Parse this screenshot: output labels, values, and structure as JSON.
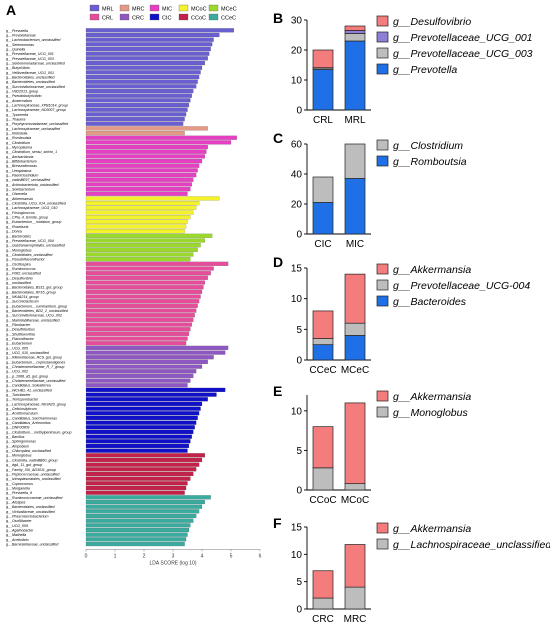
{
  "panel_labels": [
    "A",
    "B",
    "C",
    "D",
    "E",
    "F"
  ],
  "chart_data": [
    {
      "type": "bar",
      "orientation": "horizontal",
      "xlabel": "LDA SCORE (log 10)",
      "xlim": [
        0,
        6
      ],
      "xticks": [
        "0",
        "1",
        "2",
        "3",
        "4",
        "5",
        "6"
      ],
      "legend_position": "top",
      "legend": [
        {
          "name": "MRL",
          "color": "#6a5fd0"
        },
        {
          "name": "MRC",
          "color": "#e39a86"
        },
        {
          "name": "MIC",
          "color": "#e540c2"
        },
        {
          "name": "MCoC",
          "color": "#f4f22a"
        },
        {
          "name": "MCeC",
          "color": "#9ad92b"
        },
        {
          "name": "CRL",
          "color": "#e54d9a"
        },
        {
          "name": "CRC",
          "color": "#8e57c2"
        },
        {
          "name": "CIC",
          "color": "#1010c8"
        },
        {
          "name": "CCoC",
          "color": "#c2224a"
        },
        {
          "name": "CCeC",
          "color": "#3aab9e"
        }
      ],
      "bars": [
        {
          "g": 0,
          "label": "g__Prevotella",
          "value": 5.1
        },
        {
          "g": 0,
          "label": "g__Prevotellaceae",
          "value": 4.6
        },
        {
          "g": 0,
          "label": "g__Lachnobacterium_unclassified",
          "value": 4.4
        },
        {
          "g": 0,
          "label": "g__Selenomonas",
          "value": 4.35
        },
        {
          "g": 0,
          "label": "g__Quinella",
          "value": 4.3
        },
        {
          "g": 0,
          "label": "g__Prevotellaceae_UCG_001",
          "value": 4.25
        },
        {
          "g": 0,
          "label": "g__Prevotellaceae_UCG_003",
          "value": 4.2
        },
        {
          "g": 0,
          "label": "g__Selenomonadaceae_unclassified",
          "value": 4.1
        },
        {
          "g": 0,
          "label": "g__Butyrivibrio",
          "value": 4.0
        },
        {
          "g": 0,
          "label": "g__Veillonellaceae_UCG_001",
          "value": 3.95
        },
        {
          "g": 0,
          "label": "g__Bacteroidales_unclassified",
          "value": 3.9
        },
        {
          "g": 0,
          "label": "g__Bacteroidetes_unclassified",
          "value": 3.85
        },
        {
          "g": 0,
          "label": "g__Succinivibrionaceae_unclassified",
          "value": 3.8
        },
        {
          "g": 0,
          "label": "g__V9D2013_group",
          "value": 3.7
        },
        {
          "g": 0,
          "label": "g__Pseudobutyrivibrio",
          "value": 3.65
        },
        {
          "g": 0,
          "label": "g__Anaerovibrio",
          "value": 3.6
        },
        {
          "g": 0,
          "label": "g__Lachnospiraceae_XPB1014_group",
          "value": 3.55
        },
        {
          "g": 0,
          "label": "g__Lachnospiraceae_ND3007_group",
          "value": 3.5
        },
        {
          "g": 0,
          "label": "g__Tyzzerella",
          "value": 3.45
        },
        {
          "g": 0,
          "label": "g__Thauera",
          "value": 3.4
        },
        {
          "g": 0,
          "label": "g__Porphyromonadaceae_unclassified",
          "value": 3.35
        },
        {
          "g": 1,
          "label": "g__Lachnospiraceae_unclassified",
          "value": 4.2
        },
        {
          "g": 1,
          "label": "g__Klebsiella",
          "value": 3.4
        },
        {
          "g": 2,
          "label": "g__Romboutsia",
          "value": 5.2
        },
        {
          "g": 2,
          "label": "g__Clostridium",
          "value": 5.0
        },
        {
          "g": 2,
          "label": "g__Mycoplasma",
          "value": 4.2
        },
        {
          "g": 2,
          "label": "g__Clostridium_sensu_stricto_1",
          "value": 4.15
        },
        {
          "g": 2,
          "label": "g__Aerisacidovia",
          "value": 4.1
        },
        {
          "g": 2,
          "label": "g__Bifidobacterium",
          "value": 4.0
        },
        {
          "g": 2,
          "label": "g__Brevundimonas",
          "value": 3.9
        },
        {
          "g": 2,
          "label": "g__Ureaplasma",
          "value": 3.85
        },
        {
          "g": 2,
          "label": "g__Paeniclostridium",
          "value": 3.8
        },
        {
          "g": 2,
          "label": "g__vadinBE97_unclassified",
          "value": 3.7
        },
        {
          "g": 2,
          "label": "g__Actinobacteriota_unclassified",
          "value": 3.65
        },
        {
          "g": 2,
          "label": "g__Solobacterium",
          "value": 3.6
        },
        {
          "g": 2,
          "label": "g__Olsenella",
          "value": 3.5
        },
        {
          "g": 3,
          "label": "g__Akkermansia",
          "value": 4.6
        },
        {
          "g": 3,
          "label": "g__Clostridia_UCG_014_unclassified",
          "value": 3.9
        },
        {
          "g": 3,
          "label": "g__Lachnospiraceae_UCG_010",
          "value": 3.8
        },
        {
          "g": 3,
          "label": "g__Frisingicoccus",
          "value": 3.7
        },
        {
          "g": 3,
          "label": "g__CPla_4_termite_group",
          "value": 3.6
        },
        {
          "g": 3,
          "label": "g__Eubacterium__nodatum_group",
          "value": 3.5
        },
        {
          "g": 3,
          "label": "g__Roseburia",
          "value": 3.45
        },
        {
          "g": 3,
          "label": "g__Dorea",
          "value": 3.4
        },
        {
          "g": 4,
          "label": "g__Bacteroides",
          "value": 4.35
        },
        {
          "g": 4,
          "label": "g__Prevotellaceae_UCG_004",
          "value": 4.1
        },
        {
          "g": 4,
          "label": "g__Gastranaerophilales_unclassified",
          "value": 3.95
        },
        {
          "g": 4,
          "label": "g__Monoglobus",
          "value": 3.85
        },
        {
          "g": 4,
          "label": "g__Clostridiales_unclassified",
          "value": 3.7
        },
        {
          "g": 4,
          "label": "g__Pseudoflavonifractor",
          "value": 3.6
        },
        {
          "g": 5,
          "label": "g__Oscillospira",
          "value": 4.9
        },
        {
          "g": 5,
          "label": "g__Ruminococcus",
          "value": 4.4
        },
        {
          "g": 5,
          "label": "g__F082_unclassified",
          "value": 4.3
        },
        {
          "g": 5,
          "label": "g__Desulfovibrio",
          "value": 4.2
        },
        {
          "g": 5,
          "label": "g__unclassified",
          "value": 4.1
        },
        {
          "g": 5,
          "label": "g__Bacteroidales_BS11_gut_group",
          "value": 4.05
        },
        {
          "g": 5,
          "label": "g__Bacteroidales_RF16_group",
          "value": 4.0
        },
        {
          "g": 5,
          "label": "g__NK4A214_group",
          "value": 3.95
        },
        {
          "g": 5,
          "label": "g__Succiniclasticum",
          "value": 3.9
        },
        {
          "g": 5,
          "label": "g__Eubacterium__ruminantium_group",
          "value": 3.85
        },
        {
          "g": 5,
          "label": "g__Bacteroidetes_BD2_2_unclassified",
          "value": 3.8
        },
        {
          "g": 5,
          "label": "g__Succinivibrionaceae_UCG_002",
          "value": 3.75
        },
        {
          "g": 5,
          "label": "g__Marinilabiliaceae_unclassified",
          "value": 3.7
        },
        {
          "g": 5,
          "label": "g__Fibrobacter",
          "value": 3.65
        },
        {
          "g": 5,
          "label": "g__Desulfobulbus",
          "value": 3.6
        },
        {
          "g": 5,
          "label": "g__Shuttleworthia",
          "value": 3.55
        },
        {
          "g": 5,
          "label": "g__Flavonifractor",
          "value": 3.5
        },
        {
          "g": 5,
          "label": "g__Eubacterium",
          "value": 3.45
        },
        {
          "g": 6,
          "label": "g__UCG_005",
          "value": 4.9
        },
        {
          "g": 6,
          "label": "g__UCG_010_unclassified",
          "value": 4.8
        },
        {
          "g": 6,
          "label": "g__Rikenellaceae_RC9_gut_group",
          "value": 4.4
        },
        {
          "g": 6,
          "label": "g__Eubacterium__coprostanoligenes",
          "value": 4.2
        },
        {
          "g": 6,
          "label": "g__Christensenellaceae_R_7_group",
          "value": 4.0
        },
        {
          "g": 6,
          "label": "g__UCG_002",
          "value": 3.8
        },
        {
          "g": 6,
          "label": "g__p_1088_a5_gut_group",
          "value": 3.7
        },
        {
          "g": 6,
          "label": "g__Christensenellaceae_unclassified",
          "value": 3.6
        },
        {
          "g": 6,
          "label": "g__Candidatus_Soleaferrea",
          "value": 3.5
        },
        {
          "g": 7,
          "label": "g__WCHB1_41_unclassified",
          "value": 4.8
        },
        {
          "g": 7,
          "label": "g__Turicibacter",
          "value": 4.5
        },
        {
          "g": 7,
          "label": "g__Terrisporobacter",
          "value": 4.2
        },
        {
          "g": 7,
          "label": "g__Lachnospiraceae_NK3A20_group",
          "value": 4.0
        },
        {
          "g": 7,
          "label": "g__Cellulosilyticum",
          "value": 3.95
        },
        {
          "g": 7,
          "label": "g__Acetitomaculum",
          "value": 3.9
        },
        {
          "g": 7,
          "label": "g__Candidatus_Saccharimonas",
          "value": 3.85
        },
        {
          "g": 7,
          "label": "g__Candidatus_Arthromitus",
          "value": 3.8
        },
        {
          "g": 7,
          "label": "g__DNF00809",
          "value": 3.75
        },
        {
          "g": 7,
          "label": "g__Clostridium__methylpentosum_group",
          "value": 3.7
        },
        {
          "g": 7,
          "label": "g__Bacillus",
          "value": 3.65
        },
        {
          "g": 7,
          "label": "g__Sphingomonas",
          "value": 3.6
        },
        {
          "g": 7,
          "label": "g__Atopobium",
          "value": 3.55
        },
        {
          "g": 7,
          "label": "g__Chloroplast_unclassified",
          "value": 3.5
        },
        {
          "g": 8,
          "label": "g__Monoglobus",
          "value": 4.1
        },
        {
          "g": 8,
          "label": "g__Clostridia_vadinBB60_group",
          "value": 4.0
        },
        {
          "g": 8,
          "label": "g__dgA_11_gut_group",
          "value": 3.9
        },
        {
          "g": 8,
          "label": "g__Family_XIII_AD3011_group",
          "value": 3.8
        },
        {
          "g": 8,
          "label": "g__Peptococcaceae_unclassified",
          "value": 3.7
        },
        {
          "g": 8,
          "label": "g__Izimaplasmatales_unclassified",
          "value": 3.6
        },
        {
          "g": 8,
          "label": "g__Coprococcus",
          "value": 3.5
        },
        {
          "g": 8,
          "label": "g__Morganella",
          "value": 3.45
        },
        {
          "g": 8,
          "label": "g__Prevotella_9",
          "value": 3.4
        },
        {
          "g": 9,
          "label": "g__Ruminococcaceae_unclassified",
          "value": 4.3
        },
        {
          "g": 9,
          "label": "g__Alistipes",
          "value": 4.1
        },
        {
          "g": 9,
          "label": "g__Bacteroidales_unclassified",
          "value": 4.0
        },
        {
          "g": 9,
          "label": "g__Victivallaceae_unclassified",
          "value": 3.9
        },
        {
          "g": 9,
          "label": "g__Phascolarctobacterium",
          "value": 3.8
        },
        {
          "g": 9,
          "label": "g__Oscillibacter",
          "value": 3.7
        },
        {
          "g": 9,
          "label": "g__UCG_009",
          "value": 3.6
        },
        {
          "g": 9,
          "label": "g__Agathobacter",
          "value": 3.55
        },
        {
          "g": 9,
          "label": "g__Mailhella",
          "value": 3.5
        },
        {
          "g": 9,
          "label": "g__Acetivibrio",
          "value": 3.45
        },
        {
          "g": 9,
          "label": "g__Barnesiellaceae_unclassified",
          "value": 3.4
        }
      ]
    },
    {
      "id": "B",
      "type": "bar",
      "stacked": true,
      "categories": [
        "CRL",
        "MRL"
      ],
      "ylim": [
        0,
        30
      ],
      "yticks": [
        "0",
        "10",
        "20",
        "30"
      ],
      "legend_position": "right",
      "series": [
        {
          "name": "g__Prevotella",
          "color": "#1f6fe6",
          "values": [
            13.5,
            23
          ]
        },
        {
          "name": "g__Prevotellaceae_UCG_003",
          "color": "#bdbdbd",
          "values": [
            0.5,
            2.5
          ]
        },
        {
          "name": "g__Prevotellaceae_UCG_001",
          "color": "#8e7fd6",
          "values": [
            0.1,
            1.0
          ]
        },
        {
          "name": "g__Desulfovibrio",
          "color": "#f57c7c",
          "values": [
            5.9,
            1.5
          ]
        }
      ]
    },
    {
      "id": "C",
      "type": "bar",
      "stacked": true,
      "categories": [
        "CIC",
        "MIC"
      ],
      "ylim": [
        0,
        60
      ],
      "yticks": [
        "0",
        "20",
        "40",
        "60"
      ],
      "legend_position": "right",
      "series": [
        {
          "name": "g__Romboutsia",
          "color": "#1f6fe6",
          "values": [
            21,
            37
          ]
        },
        {
          "name": "g__Clostridium",
          "color": "#bdbdbd",
          "values": [
            17,
            23
          ]
        }
      ]
    },
    {
      "id": "D",
      "type": "bar",
      "stacked": true,
      "categories": [
        "CCeC",
        "MCeC"
      ],
      "ylim": [
        0,
        15
      ],
      "yticks": [
        "0",
        "5",
        "10",
        "15"
      ],
      "legend_position": "right",
      "series": [
        {
          "name": "g__Bacteroides",
          "color": "#1f6fe6",
          "values": [
            2.5,
            4
          ]
        },
        {
          "name": "g__Prevotellaceae_UCG-004",
          "color": "#bdbdbd",
          "values": [
            1,
            2
          ]
        },
        {
          "name": "g__Akkermansia",
          "color": "#f57c7c",
          "values": [
            4.5,
            8
          ]
        }
      ]
    },
    {
      "id": "E",
      "type": "bar",
      "stacked": true,
      "categories": [
        "CCoC",
        "MCoC"
      ],
      "ylim": [
        0,
        12
      ],
      "yticks": [
        "0",
        "5",
        "10"
      ],
      "legend_position": "right",
      "series": [
        {
          "name": "g__Monoglobus",
          "color": "#bdbdbd",
          "values": [
            2.8,
            0.8
          ]
        },
        {
          "name": "g__Akkermansia",
          "color": "#f57c7c",
          "values": [
            5.2,
            10.2
          ]
        }
      ]
    },
    {
      "id": "F",
      "type": "bar",
      "stacked": true,
      "categories": [
        "CRC",
        "MRC"
      ],
      "ylim": [
        0,
        15
      ],
      "yticks": [
        "0",
        "5",
        "10",
        "15"
      ],
      "legend_position": "right",
      "series": [
        {
          "name": "g__Lachnospiraceae_unclassified",
          "color": "#bdbdbd",
          "values": [
            2,
            4
          ]
        },
        {
          "name": "g__Akkermansia",
          "color": "#f57c7c",
          "values": [
            5,
            7.8
          ]
        }
      ]
    }
  ]
}
